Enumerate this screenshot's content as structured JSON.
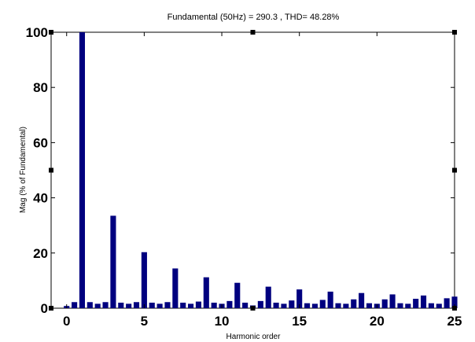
{
  "chart_data": {
    "type": "bar",
    "title": "Fundamental (50Hz) = 290.3 , THD= 48.28%",
    "xlabel": "Harmonic order",
    "ylabel": "Mag (% of Fundamental)",
    "xlim": [
      -1,
      25
    ],
    "ylim": [
      0,
      100
    ],
    "xticks": [
      0,
      5,
      10,
      15,
      20,
      25
    ],
    "yticks": [
      0,
      20,
      40,
      60,
      80,
      100
    ],
    "grid": false,
    "bar_color": "#00007f",
    "x": [
      0,
      0.5,
      1,
      1.5,
      2,
      2.5,
      3,
      3.5,
      4,
      4.5,
      5,
      5.5,
      6,
      6.5,
      7,
      7.5,
      8,
      8.5,
      9,
      9.5,
      10,
      10.5,
      11,
      11.5,
      12,
      12.5,
      13,
      13.5,
      14,
      14.5,
      15,
      15.5,
      16,
      16.5,
      17,
      17.5,
      18,
      18.5,
      19,
      19.5,
      20,
      20.5,
      21,
      21.5,
      22,
      22.5,
      23,
      23.5,
      24,
      24.5,
      25
    ],
    "values": [
      0.8,
      2.2,
      100,
      2.2,
      1.6,
      2.2,
      33.5,
      2.0,
      1.6,
      2.2,
      20.3,
      2.0,
      1.6,
      2.2,
      14.4,
      2.0,
      1.6,
      2.4,
      11.2,
      2.0,
      1.6,
      2.6,
      9.2,
      2.0,
      1.0,
      2.6,
      7.8,
      2.0,
      1.6,
      2.8,
      6.8,
      1.8,
      1.6,
      3.0,
      6.0,
      1.8,
      1.6,
      3.2,
      5.5,
      1.8,
      1.6,
      3.2,
      5.0,
      1.8,
      1.6,
      3.4,
      4.6,
      1.8,
      1.6,
      3.6,
      4.2
    ]
  }
}
